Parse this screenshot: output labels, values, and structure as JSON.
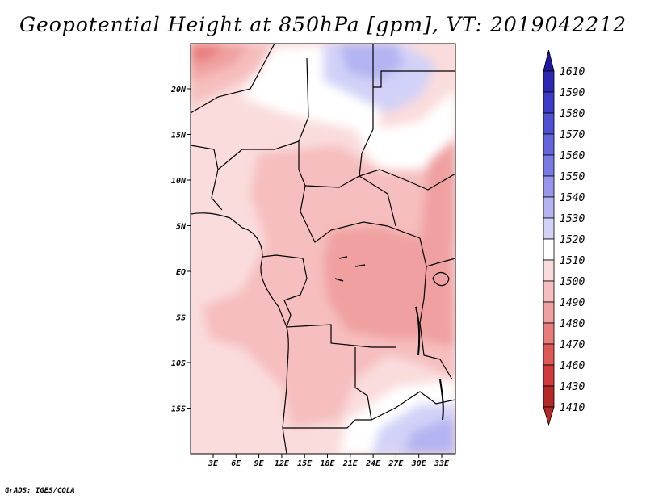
{
  "title": "Geopotential Height at 850hPa [gpm], VT: 2019042212",
  "credit": "GrADS: IGES/COLA",
  "map": {
    "lat_labels": [
      "20N",
      "15N",
      "10N",
      "5N",
      "EQ",
      "5S",
      "10S",
      "15S"
    ],
    "lon_labels": [
      "3E",
      "6E",
      "9E",
      "12E",
      "15E",
      "18E",
      "21E",
      "24E",
      "27E",
      "30E",
      "33E"
    ]
  },
  "colorbar": {
    "levels": [
      "1610",
      "1590",
      "1580",
      "1570",
      "1560",
      "1550",
      "1540",
      "1530",
      "1520",
      "1510",
      "1500",
      "1490",
      "1480",
      "1470",
      "1460",
      "1430",
      "1410"
    ],
    "colors": [
      "#1e1aa0",
      "#2c28b4",
      "#3c3ac6",
      "#5050d2",
      "#6464dc",
      "#7a7ae4",
      "#9696ec",
      "#b4b4f2",
      "#d2d2f8",
      "#ffffff",
      "#fadcdc",
      "#f6bebe",
      "#f0a0a0",
      "#e87c7c",
      "#de5858",
      "#d03a3a",
      "#b42828"
    ]
  }
}
